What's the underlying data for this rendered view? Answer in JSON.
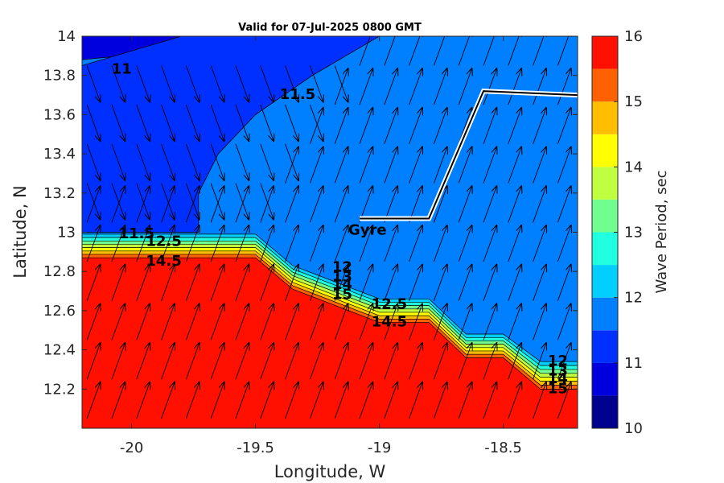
{
  "chart_data": {
    "type": "contour",
    "title": "Valid for 07-Jul-2025 0800 GMT",
    "xlabel": "Longitude, W",
    "ylabel": "Latitude, N",
    "xlim": [
      -20.2,
      -18.2
    ],
    "ylim": [
      12.0,
      14.0
    ],
    "x_ticks": [
      -20,
      -19.5,
      -19,
      -18.5
    ],
    "x_tick_labels": [
      "-20",
      "-19.5",
      "-19",
      "-18.5"
    ],
    "y_ticks": [
      12.2,
      12.4,
      12.6,
      12.8,
      13,
      13.2,
      13.4,
      13.6,
      13.8,
      14
    ],
    "y_tick_labels": [
      "12.2",
      "12.4",
      "12.6",
      "12.8",
      "13",
      "13.2",
      "13.4",
      "13.6",
      "13.8",
      "14"
    ],
    "colorbar": {
      "label": "Wave Period, sec",
      "range": [
        10,
        16
      ],
      "tick_values": [
        10,
        11,
        12,
        13,
        14,
        15,
        16
      ],
      "tick_labels": [
        "10",
        "11",
        "12",
        "13",
        "14",
        "15",
        "16"
      ],
      "levels": [
        10,
        10.5,
        11,
        11.5,
        12,
        12.5,
        13,
        13.5,
        14,
        14.5,
        15,
        15.5,
        16
      ],
      "colors": [
        "#00008f",
        "#0000df",
        "#0030ff",
        "#0080ff",
        "#00cfff",
        "#20ffdf",
        "#70ff8f",
        "#bfff40",
        "#ffff00",
        "#ffbf00",
        "#ff6000",
        "#ff1000",
        "#af0000"
      ]
    },
    "regions": [
      {
        "period_range": [
          10.5,
          11
        ],
        "color": "#0000df",
        "boundary_lonlat": [
          [
            -20.2,
            14.0
          ],
          [
            -19.8,
            14.0
          ],
          [
            -19.8,
            13.93
          ],
          [
            -20.2,
            13.88
          ]
        ]
      },
      {
        "period_range": [
          11,
          11.5
        ],
        "color": "#0030ff",
        "boundary_lonlat": [
          [
            -19.8,
            14.0
          ],
          [
            -19.0,
            14.0
          ],
          [
            -19.27,
            13.8
          ],
          [
            -19.5,
            13.6
          ],
          [
            -19.65,
            13.4
          ],
          [
            -19.73,
            13.2
          ],
          [
            -19.73,
            13.0
          ],
          [
            -20.2,
            13.0
          ],
          [
            -20.2,
            13.85
          ]
        ]
      },
      {
        "period_range": [
          11.5,
          12
        ],
        "color": "#0080ff",
        "boundary_lonlat": [
          [
            -19.0,
            14.0
          ],
          [
            -18.2,
            14.0
          ],
          [
            -18.2,
            12.34
          ],
          [
            -18.35,
            12.34
          ],
          [
            -18.5,
            12.48
          ],
          [
            -18.65,
            12.48
          ],
          [
            -18.8,
            12.66
          ],
          [
            -19.0,
            12.66
          ],
          [
            -19.35,
            12.83
          ],
          [
            -19.5,
            12.99
          ],
          [
            -20.2,
            12.99
          ],
          [
            -20.2,
            13.0
          ],
          [
            -19.73,
            13.0
          ],
          [
            -19.73,
            13.2
          ],
          [
            -19.65,
            13.4
          ],
          [
            -19.5,
            13.6
          ],
          [
            -19.27,
            13.8
          ]
        ]
      },
      {
        "period_range": [
          15,
          15.5
        ],
        "color": "#ff1000",
        "boundary_lonlat": [
          [
            -20.2,
            12.87
          ],
          [
            -19.5,
            12.87
          ],
          [
            -19.35,
            12.71
          ],
          [
            -19.0,
            12.54
          ],
          [
            -18.8,
            12.54
          ],
          [
            -18.65,
            12.36
          ],
          [
            -18.5,
            12.36
          ],
          [
            -18.35,
            12.2
          ],
          [
            -18.2,
            12.2
          ],
          [
            -18.2,
            12.0
          ],
          [
            -20.2,
            12.0
          ]
        ]
      }
    ],
    "contour_labels": [
      {
        "text": "11",
        "lon": -20.04,
        "lat": 13.83
      },
      {
        "text": "11.5",
        "lon": -19.33,
        "lat": 13.7
      },
      {
        "text": "11.5",
        "lon": -19.98,
        "lat": 12.99
      },
      {
        "text": "12.5",
        "lon": -19.87,
        "lat": 12.95
      },
      {
        "text": "14.5",
        "lon": -19.87,
        "lat": 12.85
      },
      {
        "text": "12",
        "lon": -19.15,
        "lat": 12.82
      },
      {
        "text": "13",
        "lon": -19.15,
        "lat": 12.77
      },
      {
        "text": "14",
        "lon": -19.15,
        "lat": 12.73
      },
      {
        "text": "15",
        "lon": -19.15,
        "lat": 12.68
      },
      {
        "text": "12.5",
        "lon": -18.96,
        "lat": 12.63
      },
      {
        "text": "14.5",
        "lon": -18.96,
        "lat": 12.54
      },
      {
        "text": "12",
        "lon": -18.28,
        "lat": 12.34
      },
      {
        "text": "13",
        "lon": -18.28,
        "lat": 12.29
      },
      {
        "text": "14",
        "lon": -18.28,
        "lat": 12.25
      },
      {
        "text": "15",
        "lon": -18.28,
        "lat": 12.2
      }
    ],
    "track": {
      "label": "Gyre",
      "points_lonlat": [
        [
          -19.08,
          13.07
        ],
        [
          -18.8,
          13.07
        ],
        [
          -18.58,
          13.72
        ],
        [
          -18.2,
          13.7
        ]
      ]
    },
    "vector_field": {
      "description": "wave direction arrows",
      "northwest_group_angle_deg": -60,
      "main_group_angle_deg": 70,
      "ne_arrows_lonlat_grid_step": 0.1
    }
  }
}
